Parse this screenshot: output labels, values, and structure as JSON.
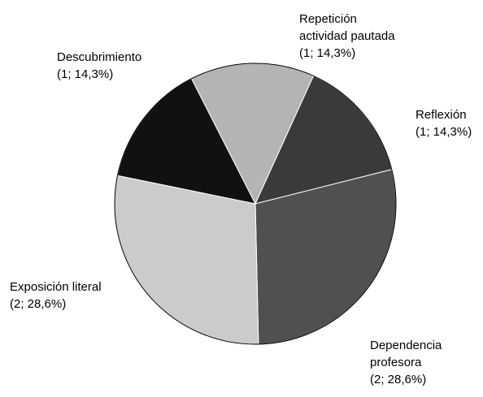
{
  "chart_data": {
    "type": "pie",
    "title": "",
    "legend": "none",
    "slices": [
      {
        "name": "Repetición actividad pautada",
        "label_lines": [
          "Repetición",
          "actividad pautada",
          "(1; 14,3%)"
        ],
        "value": 1,
        "percent": "14,3%",
        "color": "#b4b4b4"
      },
      {
        "name": "Reflexión",
        "label_lines": [
          "Reflexión",
          "(1; 14,3%)"
        ],
        "value": 1,
        "percent": "14,3%",
        "color": "#3a3a3a"
      },
      {
        "name": "Dependencia profesora",
        "label_lines": [
          "Dependencia",
          "profesora",
          "(2; 28,6%)"
        ],
        "value": 2,
        "percent": "28,6%",
        "color": "#505050"
      },
      {
        "name": "Exposición literal",
        "label_lines": [
          "Exposición literal",
          "(2; 28,6%)"
        ],
        "value": 2,
        "percent": "28,6%",
        "color": "#cbcbcb"
      },
      {
        "name": "Descubrimiento",
        "label_lines": [
          "Descubrimiento",
          "(1; 14,3%)"
        ],
        "value": 1,
        "percent": "14,3%",
        "color": "#111111"
      }
    ]
  }
}
